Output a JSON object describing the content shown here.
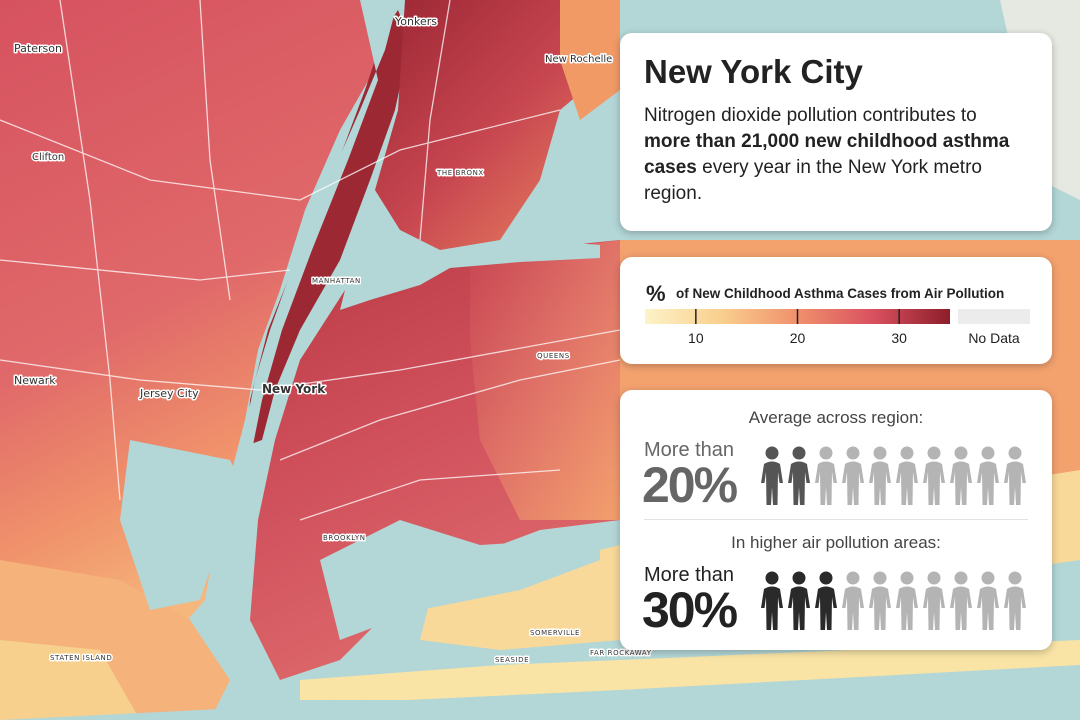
{
  "map": {
    "labels": [
      "Paterson",
      "Yonkers",
      "New Rochelle",
      "Clifton",
      "The Bronx",
      "Manhattan",
      "Newark",
      "Jersey City",
      "New York",
      "Queens",
      "Brooklyn",
      "Staten Island",
      "Somerville",
      "Far Rockaway",
      "Seaside"
    ]
  },
  "header": {
    "title": "New York City",
    "description": [
      "Nitrogen dioxide pollution contributes to",
      "more than 21,000 new childhood asthma cases",
      "every year in the New York metro region."
    ]
  },
  "legend": {
    "symbol": "%",
    "title": "of New Childhood Asthma Cases from Air Pollution",
    "range": [
      5,
      35
    ],
    "ticks": [
      10,
      20,
      30
    ],
    "colors": [
      "#fdf3c8",
      "#f9cf8e",
      "#f0906c",
      "#d9505f",
      "#8c1e2a"
    ],
    "no_data": "No Data",
    "no_data_color": "#ececec"
  },
  "stats": [
    {
      "heading": "Average across region:",
      "prefix": "More than",
      "share": {
        "value": 20,
        "label": "20%"
      }
    },
    {
      "heading": "In higher air pollution areas:",
      "prefix": "More than",
      "share": {
        "value": 30,
        "label": "30%"
      }
    }
  ]
}
